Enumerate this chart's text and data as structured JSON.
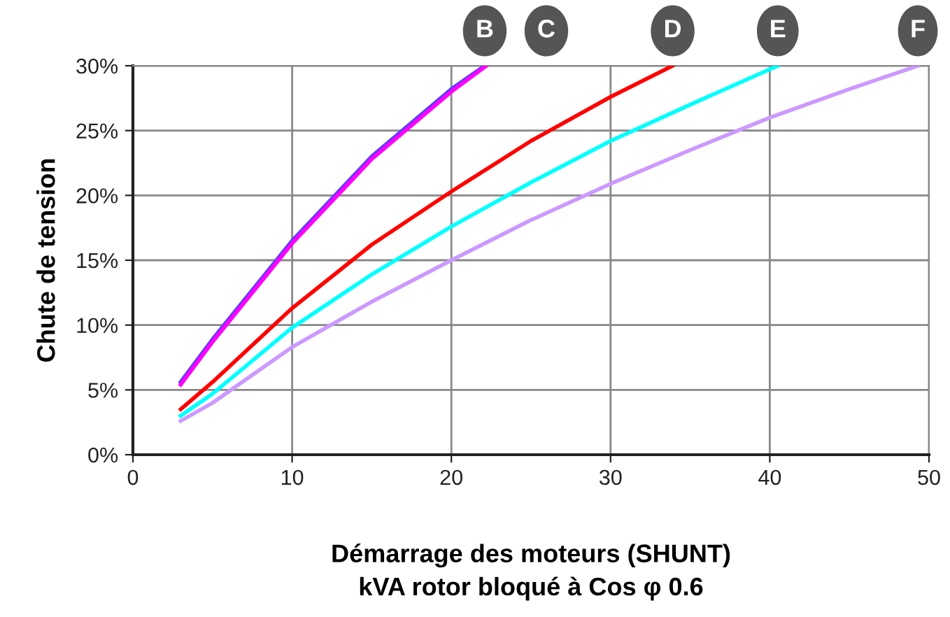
{
  "chart_data": {
    "type": "line",
    "xlabel": "Démarrage des moteurs (SHUNT)\nkVA rotor bloqué à Cos φ 0.6",
    "ylabel": "Chute de tension",
    "xlim": [
      0,
      50
    ],
    "xticks": [
      0,
      10,
      20,
      30,
      40,
      50
    ],
    "ylim": [
      0,
      30
    ],
    "yticks": [
      {
        "value": 0,
        "label": "0%"
      },
      {
        "value": 5,
        "label": "5%"
      },
      {
        "value": 10,
        "label": "10%"
      },
      {
        "value": 15,
        "label": "15%"
      },
      {
        "value": 20,
        "label": "20%"
      },
      {
        "value": 25,
        "label": "25%"
      },
      {
        "value": 30,
        "label": "30%"
      }
    ],
    "grid": true,
    "legend": false,
    "marker": "none",
    "line_style": "solid",
    "series": [
      {
        "name": "B",
        "color": "#5a3cff",
        "x": [
          3,
          5,
          10,
          15,
          20,
          22.1
        ],
        "values": [
          5.6,
          8.9,
          16.5,
          23.0,
          28.2,
          30
        ]
      },
      {
        "name": "C",
        "color": "#ff00ff",
        "x": [
          3,
          5,
          10,
          15,
          20,
          22.2
        ],
        "values": [
          5.4,
          8.7,
          16.3,
          22.8,
          28.0,
          30
        ]
      },
      {
        "name": "D",
        "color": "#ff0000",
        "x": [
          3,
          5,
          10,
          15,
          20,
          25,
          30,
          33.9
        ],
        "values": [
          3.5,
          5.6,
          11.3,
          16.2,
          20.3,
          24.2,
          27.6,
          30
        ]
      },
      {
        "name": "E",
        "color": "#00ffff",
        "x": [
          3,
          5,
          10,
          15,
          20,
          25,
          30,
          35,
          40.5
        ],
        "values": [
          3.0,
          4.7,
          9.8,
          13.9,
          17.6,
          21.0,
          24.2,
          27.0,
          30
        ]
      },
      {
        "name": "F",
        "color": "#cc99ff",
        "x": [
          3,
          5,
          10,
          15,
          20,
          25,
          30,
          35,
          40,
          45,
          49.3
        ],
        "values": [
          2.6,
          4.0,
          8.3,
          11.8,
          15.0,
          18.1,
          20.9,
          23.5,
          26.0,
          28.2,
          30
        ]
      }
    ]
  }
}
